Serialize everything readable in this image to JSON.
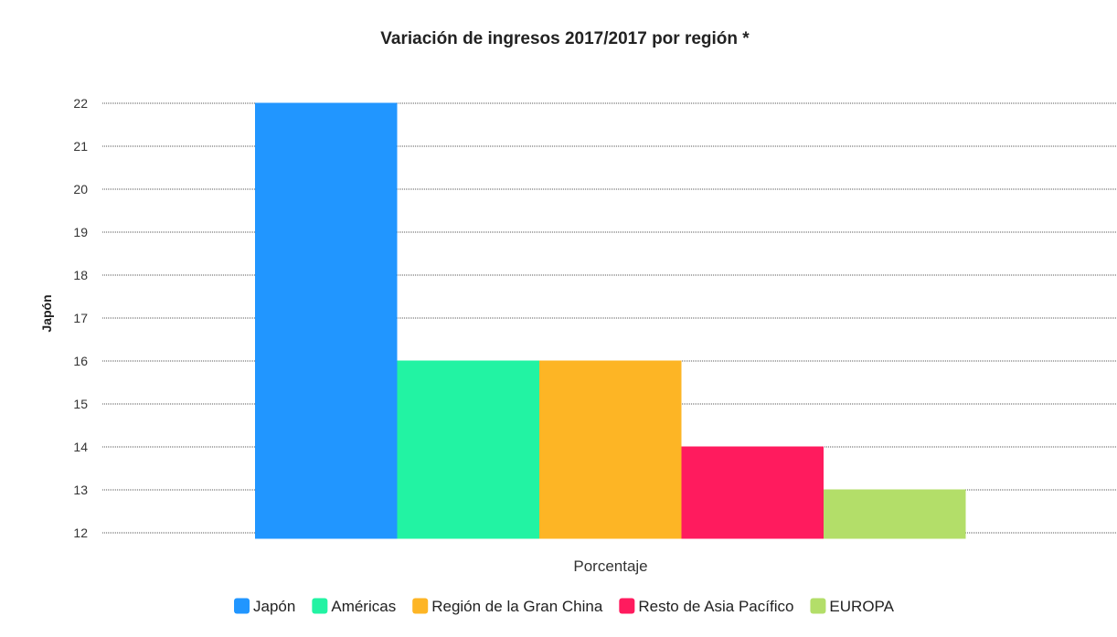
{
  "chart_data": {
    "type": "bar",
    "title": "Variación de ingresos 2017/2017 por región *",
    "xlabel": "Porcentaje",
    "ylabel": "Japón",
    "categories": [
      "Porcentaje"
    ],
    "ylim": [
      12,
      22
    ],
    "yticks": [
      12,
      13,
      14,
      15,
      16,
      17,
      18,
      19,
      20,
      21,
      22
    ],
    "grid": true,
    "legend_position": "bottom",
    "series": [
      {
        "name": "Japón",
        "values": [
          22
        ],
        "color": "#2196FF"
      },
      {
        "name": "Américas",
        "values": [
          16
        ],
        "color": "#22F3A3"
      },
      {
        "name": "Región de la Gran China",
        "values": [
          16
        ],
        "color": "#FDB525"
      },
      {
        "name": "Resto de Asia Pacífico",
        "values": [
          14
        ],
        "color": "#FF1B5E"
      },
      {
        "name": "EUROPA",
        "values": [
          13
        ],
        "color": "#B3DE69"
      }
    ]
  }
}
